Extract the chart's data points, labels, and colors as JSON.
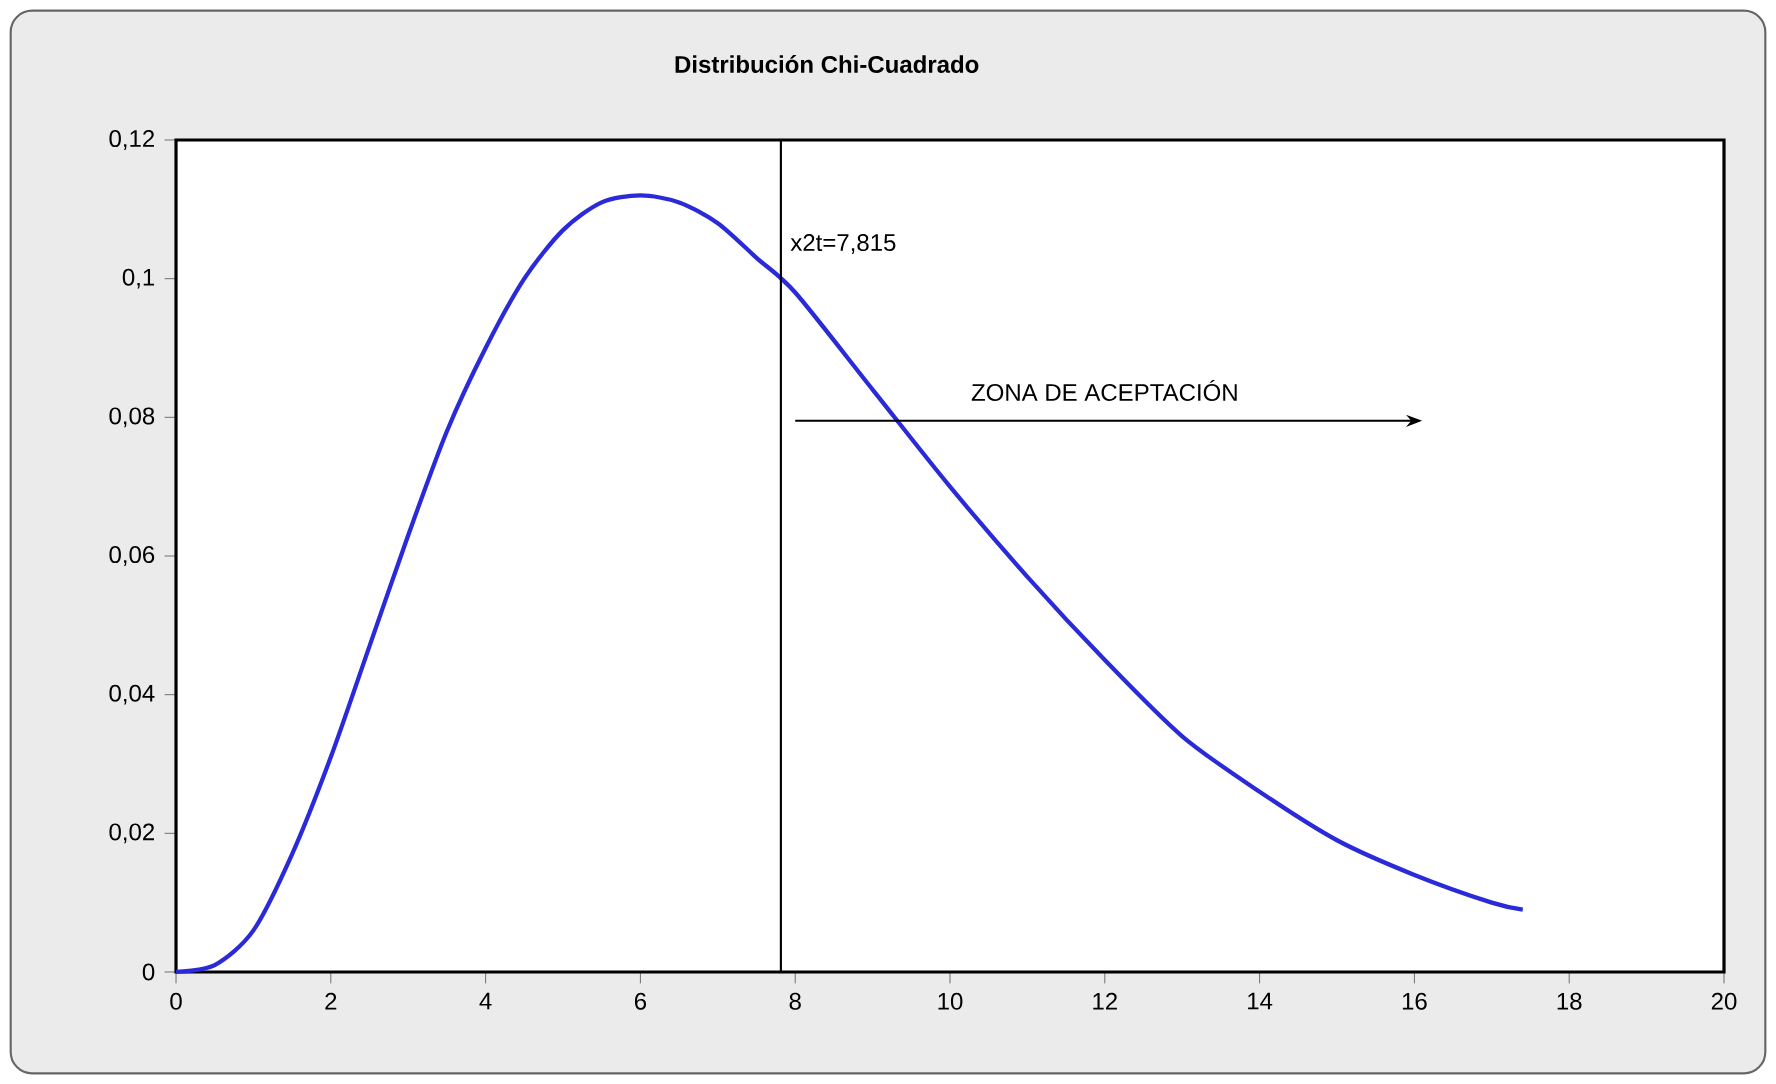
{
  "chart_data": {
    "type": "line",
    "title": "Distribución Chi-Cuadrado",
    "x": [
      0,
      0.5,
      1,
      1.5,
      2,
      2.5,
      3,
      3.5,
      4,
      4.5,
      5,
      5.5,
      6,
      6.5,
      7,
      7.5,
      8,
      9,
      10,
      11,
      12,
      13,
      14,
      15,
      16,
      17,
      17.4
    ],
    "series": [
      {
        "color": "#2a2ad8",
        "values": [
          0,
          0.001,
          0.006,
          0.017,
          0.031,
          0.047,
          0.063,
          0.078,
          0.09,
          0.1,
          0.107,
          0.111,
          0.112,
          0.111,
          0.108,
          0.103,
          0.098,
          0.084,
          0.07,
          0.057,
          0.045,
          0.034,
          0.026,
          0.019,
          0.014,
          0.01,
          0.009
        ]
      }
    ],
    "xlim": [
      0,
      20
    ],
    "xticks": [
      0,
      2,
      4,
      6,
      8,
      10,
      12,
      14,
      16,
      18,
      20
    ],
    "ylim": [
      0,
      0.12
    ],
    "yticks": [
      0,
      {
        "value": 0.02,
        "label": "0,02"
      },
      {
        "value": 0.04,
        "label": "0,04"
      },
      {
        "value": 0.06,
        "label": "0,06"
      },
      {
        "value": 0.08,
        "label": "0,08"
      },
      {
        "value": 0.1,
        "label": "0,1"
      },
      {
        "value": 0.12,
        "label": "0,12"
      }
    ],
    "ref_lines": [
      {
        "axis": "x",
        "value": 7.815,
        "label": "x2t=7,815",
        "color": "#000000"
      }
    ],
    "annotations": [
      "ZONA DE ACEPTACIÓN"
    ],
    "grid": false,
    "marker": "none",
    "line_style": "solid"
  }
}
